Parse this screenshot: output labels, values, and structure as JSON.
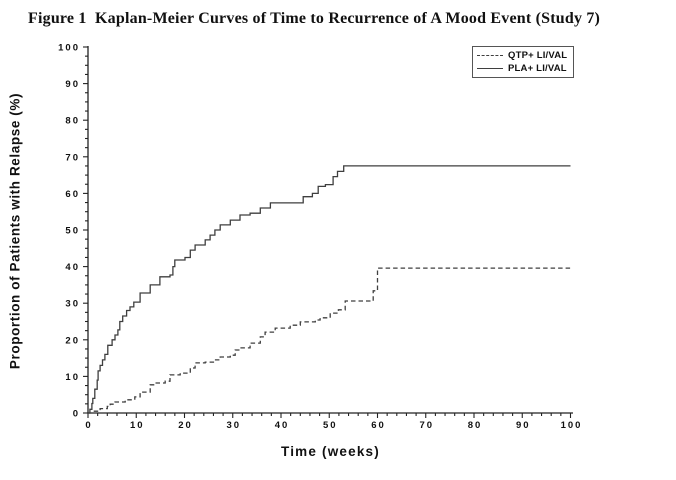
{
  "title": "Figure 1  Kaplan-Meier Curves of Time to Recurrence of A Mood Event (Study 7)",
  "colors": {
    "background": "#ffffff",
    "axis": "#222222",
    "curve": "#3f3f3f",
    "text": "#111111"
  },
  "chart_data": {
    "type": "line",
    "subtype": "kaplan-meier-step",
    "title": "Figure 1  Kaplan-Meier Curves of Time to Recurrence of A Mood Event (Study 7)",
    "xlabel": "Time (weeks)",
    "ylabel": "Proportion of Patients with Relapse (%)",
    "xlim": [
      0,
      100
    ],
    "ylim": [
      0,
      100
    ],
    "x_major_ticks": [
      0,
      10,
      20,
      30,
      40,
      50,
      60,
      70,
      80,
      90,
      100
    ],
    "x_minor_step": 2,
    "y_major_ticks": [
      0,
      10,
      20,
      30,
      40,
      50,
      60,
      70,
      80,
      90,
      100
    ],
    "y_minor_step": 2.5,
    "grid": false,
    "legend": {
      "position": "top-right",
      "entries": [
        {
          "label": "QTP+ LI/VAL",
          "line": "dashed"
        },
        {
          "label": "PLA+ LI/VAL",
          "line": "solid"
        }
      ]
    },
    "series": [
      {
        "name": "PLA+ LI/VAL",
        "style": "solid",
        "color": "#3f3f3f",
        "points": [
          [
            0,
            0
          ],
          [
            0.4,
            1
          ],
          [
            0.8,
            2.6
          ],
          [
            1.0,
            4
          ],
          [
            1.4,
            6.5
          ],
          [
            1.9,
            9
          ],
          [
            2.1,
            11.5
          ],
          [
            2.5,
            13
          ],
          [
            3.0,
            14.5
          ],
          [
            3.5,
            16
          ],
          [
            4.1,
            18.5
          ],
          [
            5.0,
            20
          ],
          [
            5.6,
            21.3
          ],
          [
            6.2,
            22.7
          ],
          [
            6.6,
            25
          ],
          [
            7.2,
            26.5
          ],
          [
            8.0,
            28
          ],
          [
            8.7,
            29
          ],
          [
            9.5,
            30.3
          ],
          [
            10.8,
            32.8
          ],
          [
            12.9,
            35
          ],
          [
            14.9,
            37.2
          ],
          [
            17.0,
            37.7
          ],
          [
            17.6,
            40
          ],
          [
            18.0,
            41.8
          ],
          [
            20.1,
            42.5
          ],
          [
            21.2,
            44.5
          ],
          [
            22.2,
            45.9
          ],
          [
            24.3,
            47.3
          ],
          [
            25.3,
            48.6
          ],
          [
            26.3,
            50
          ],
          [
            27.4,
            51.4
          ],
          [
            29.5,
            52.7
          ],
          [
            31.5,
            54.1
          ],
          [
            33.6,
            54.6
          ],
          [
            35.7,
            56
          ],
          [
            37.8,
            57.4
          ],
          [
            44.6,
            59.1
          ],
          [
            46.5,
            60
          ],
          [
            47.7,
            61.9
          ],
          [
            49.2,
            62.4
          ],
          [
            50.8,
            64.6
          ],
          [
            51.7,
            66
          ],
          [
            53.0,
            67.5
          ],
          [
            100,
            67.5
          ]
        ]
      },
      {
        "name": "QTP+ LI/VAL",
        "style": "dashed",
        "color": "#3f3f3f",
        "points": [
          [
            0,
            0
          ],
          [
            1.0,
            0.5
          ],
          [
            2.5,
            1.2
          ],
          [
            4.0,
            1.8
          ],
          [
            4.6,
            2.4
          ],
          [
            5.6,
            3.0
          ],
          [
            7.7,
            3.6
          ],
          [
            9.7,
            4.4
          ],
          [
            10.8,
            5.7
          ],
          [
            12.9,
            7.7
          ],
          [
            13.9,
            8.2
          ],
          [
            16.0,
            8.7
          ],
          [
            17.0,
            10.4
          ],
          [
            19.1,
            10.9
          ],
          [
            21.2,
            12.3
          ],
          [
            22.2,
            13.7
          ],
          [
            24.3,
            13.9
          ],
          [
            26.3,
            14.5
          ],
          [
            27.4,
            15.3
          ],
          [
            29.5,
            15.8
          ],
          [
            30.5,
            17.2
          ],
          [
            31.5,
            17.8
          ],
          [
            33.6,
            19.1
          ],
          [
            35.7,
            20.8
          ],
          [
            36.7,
            22.1
          ],
          [
            38.8,
            23.2
          ],
          [
            41.9,
            24.0
          ],
          [
            44.0,
            24.9
          ],
          [
            47.1,
            25.4
          ],
          [
            48.1,
            26.0
          ],
          [
            50.2,
            27.3
          ],
          [
            51.9,
            28.2
          ],
          [
            53.3,
            30.6
          ],
          [
            59.1,
            33.4
          ],
          [
            60.0,
            39.6
          ],
          [
            100,
            39.6
          ]
        ]
      }
    ]
  }
}
